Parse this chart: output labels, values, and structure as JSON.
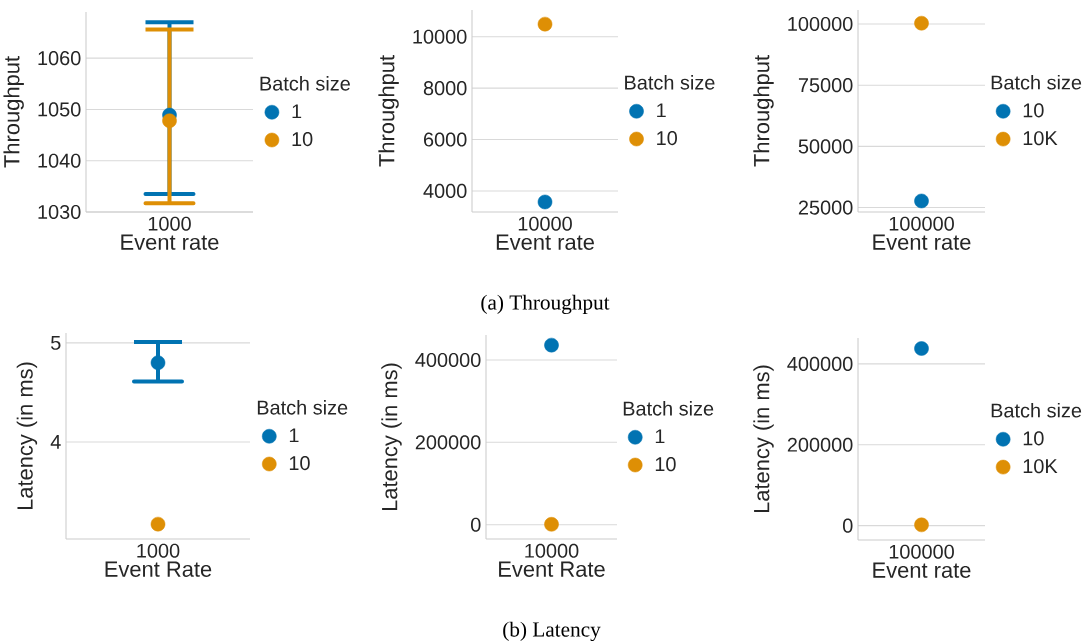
{
  "chart_data": [
    {
      "type": "scatter",
      "categories": [
        "1000"
      ],
      "xlabel": "Event rate",
      "ylabel": "Throughput",
      "legend_title": "Batch size",
      "legend": "right",
      "grid": "y",
      "ylim": [
        1030,
        1069
      ],
      "yticks": [
        1030,
        1040,
        1050,
        1060
      ],
      "series": [
        {
          "name": "1",
          "color": "#0173b2",
          "values": [
            1048.9
          ],
          "errors": [
            [
              1033.5,
              1067.0
            ]
          ]
        },
        {
          "name": "10",
          "color": "#de8f05",
          "values": [
            1047.8
          ],
          "errors": [
            [
              1031.7,
              1065.6
            ]
          ]
        }
      ]
    },
    {
      "type": "scatter",
      "categories": [
        "10000"
      ],
      "xlabel": "Event rate",
      "ylabel": "Throughput",
      "legend_title": "Batch size",
      "legend": "right",
      "grid": "y",
      "ylim": [
        3180,
        11040
      ],
      "yticks": [
        4000,
        6000,
        8000,
        10000
      ],
      "annotations": [
        "(a) Throughput"
      ],
      "series": [
        {
          "name": "1",
          "color": "#0173b2",
          "values": [
            3570
          ]
        },
        {
          "name": "10",
          "color": "#de8f05",
          "values": [
            10490
          ]
        }
      ]
    },
    {
      "type": "scatter",
      "categories": [
        "100000"
      ],
      "xlabel": "Event rate",
      "ylabel": "Throughput",
      "legend_title": "Batch size",
      "legend": "right",
      "grid": "y",
      "ylim": [
        23200,
        105700
      ],
      "yticks": [
        25000,
        50000,
        75000,
        100000
      ],
      "series": [
        {
          "name": "10",
          "color": "#0173b2",
          "values": [
            27700
          ]
        },
        {
          "name": "10K",
          "color": "#de8f05",
          "values": [
            100300
          ]
        }
      ]
    },
    {
      "type": "scatter",
      "categories": [
        "1000"
      ],
      "xlabel": "Event Rate",
      "ylabel": "Latency (in ms)",
      "legend_title": "Batch size",
      "legend": "right",
      "grid": "y",
      "ylim": [
        3.02,
        5.1
      ],
      "yticks": [
        4,
        5
      ],
      "series": [
        {
          "name": "1",
          "color": "#0173b2",
          "values": [
            4.8
          ],
          "errors": [
            [
              4.61,
              5.01
            ]
          ]
        },
        {
          "name": "10",
          "color": "#de8f05",
          "values": [
            3.17
          ]
        }
      ]
    },
    {
      "type": "scatter",
      "categories": [
        "10000"
      ],
      "xlabel": "Event Rate",
      "ylabel": "Latency (in ms)",
      "legend_title": "Batch size",
      "legend": "right",
      "grid": "y",
      "ylim": [
        -34700,
        460600
      ],
      "yticks": [
        0,
        200000,
        400000
      ],
      "annotations": [
        "(b) Latency"
      ],
      "series": [
        {
          "name": "1",
          "color": "#0173b2",
          "values": [
            436000
          ]
        },
        {
          "name": "10",
          "color": "#de8f05",
          "values": [
            1000
          ]
        }
      ]
    },
    {
      "type": "scatter",
      "categories": [
        "100000"
      ],
      "xlabel": "Event rate",
      "ylabel": "Latency (in ms)",
      "legend_title": "Batch size",
      "legend": "right",
      "grid": "y",
      "ylim": [
        -35500,
        464000
      ],
      "yticks": [
        0,
        200000,
        400000
      ],
      "series": [
        {
          "name": "10",
          "color": "#0173b2",
          "values": [
            438000
          ]
        },
        {
          "name": "10K",
          "color": "#de8f05",
          "values": [
            2000
          ]
        }
      ]
    }
  ]
}
